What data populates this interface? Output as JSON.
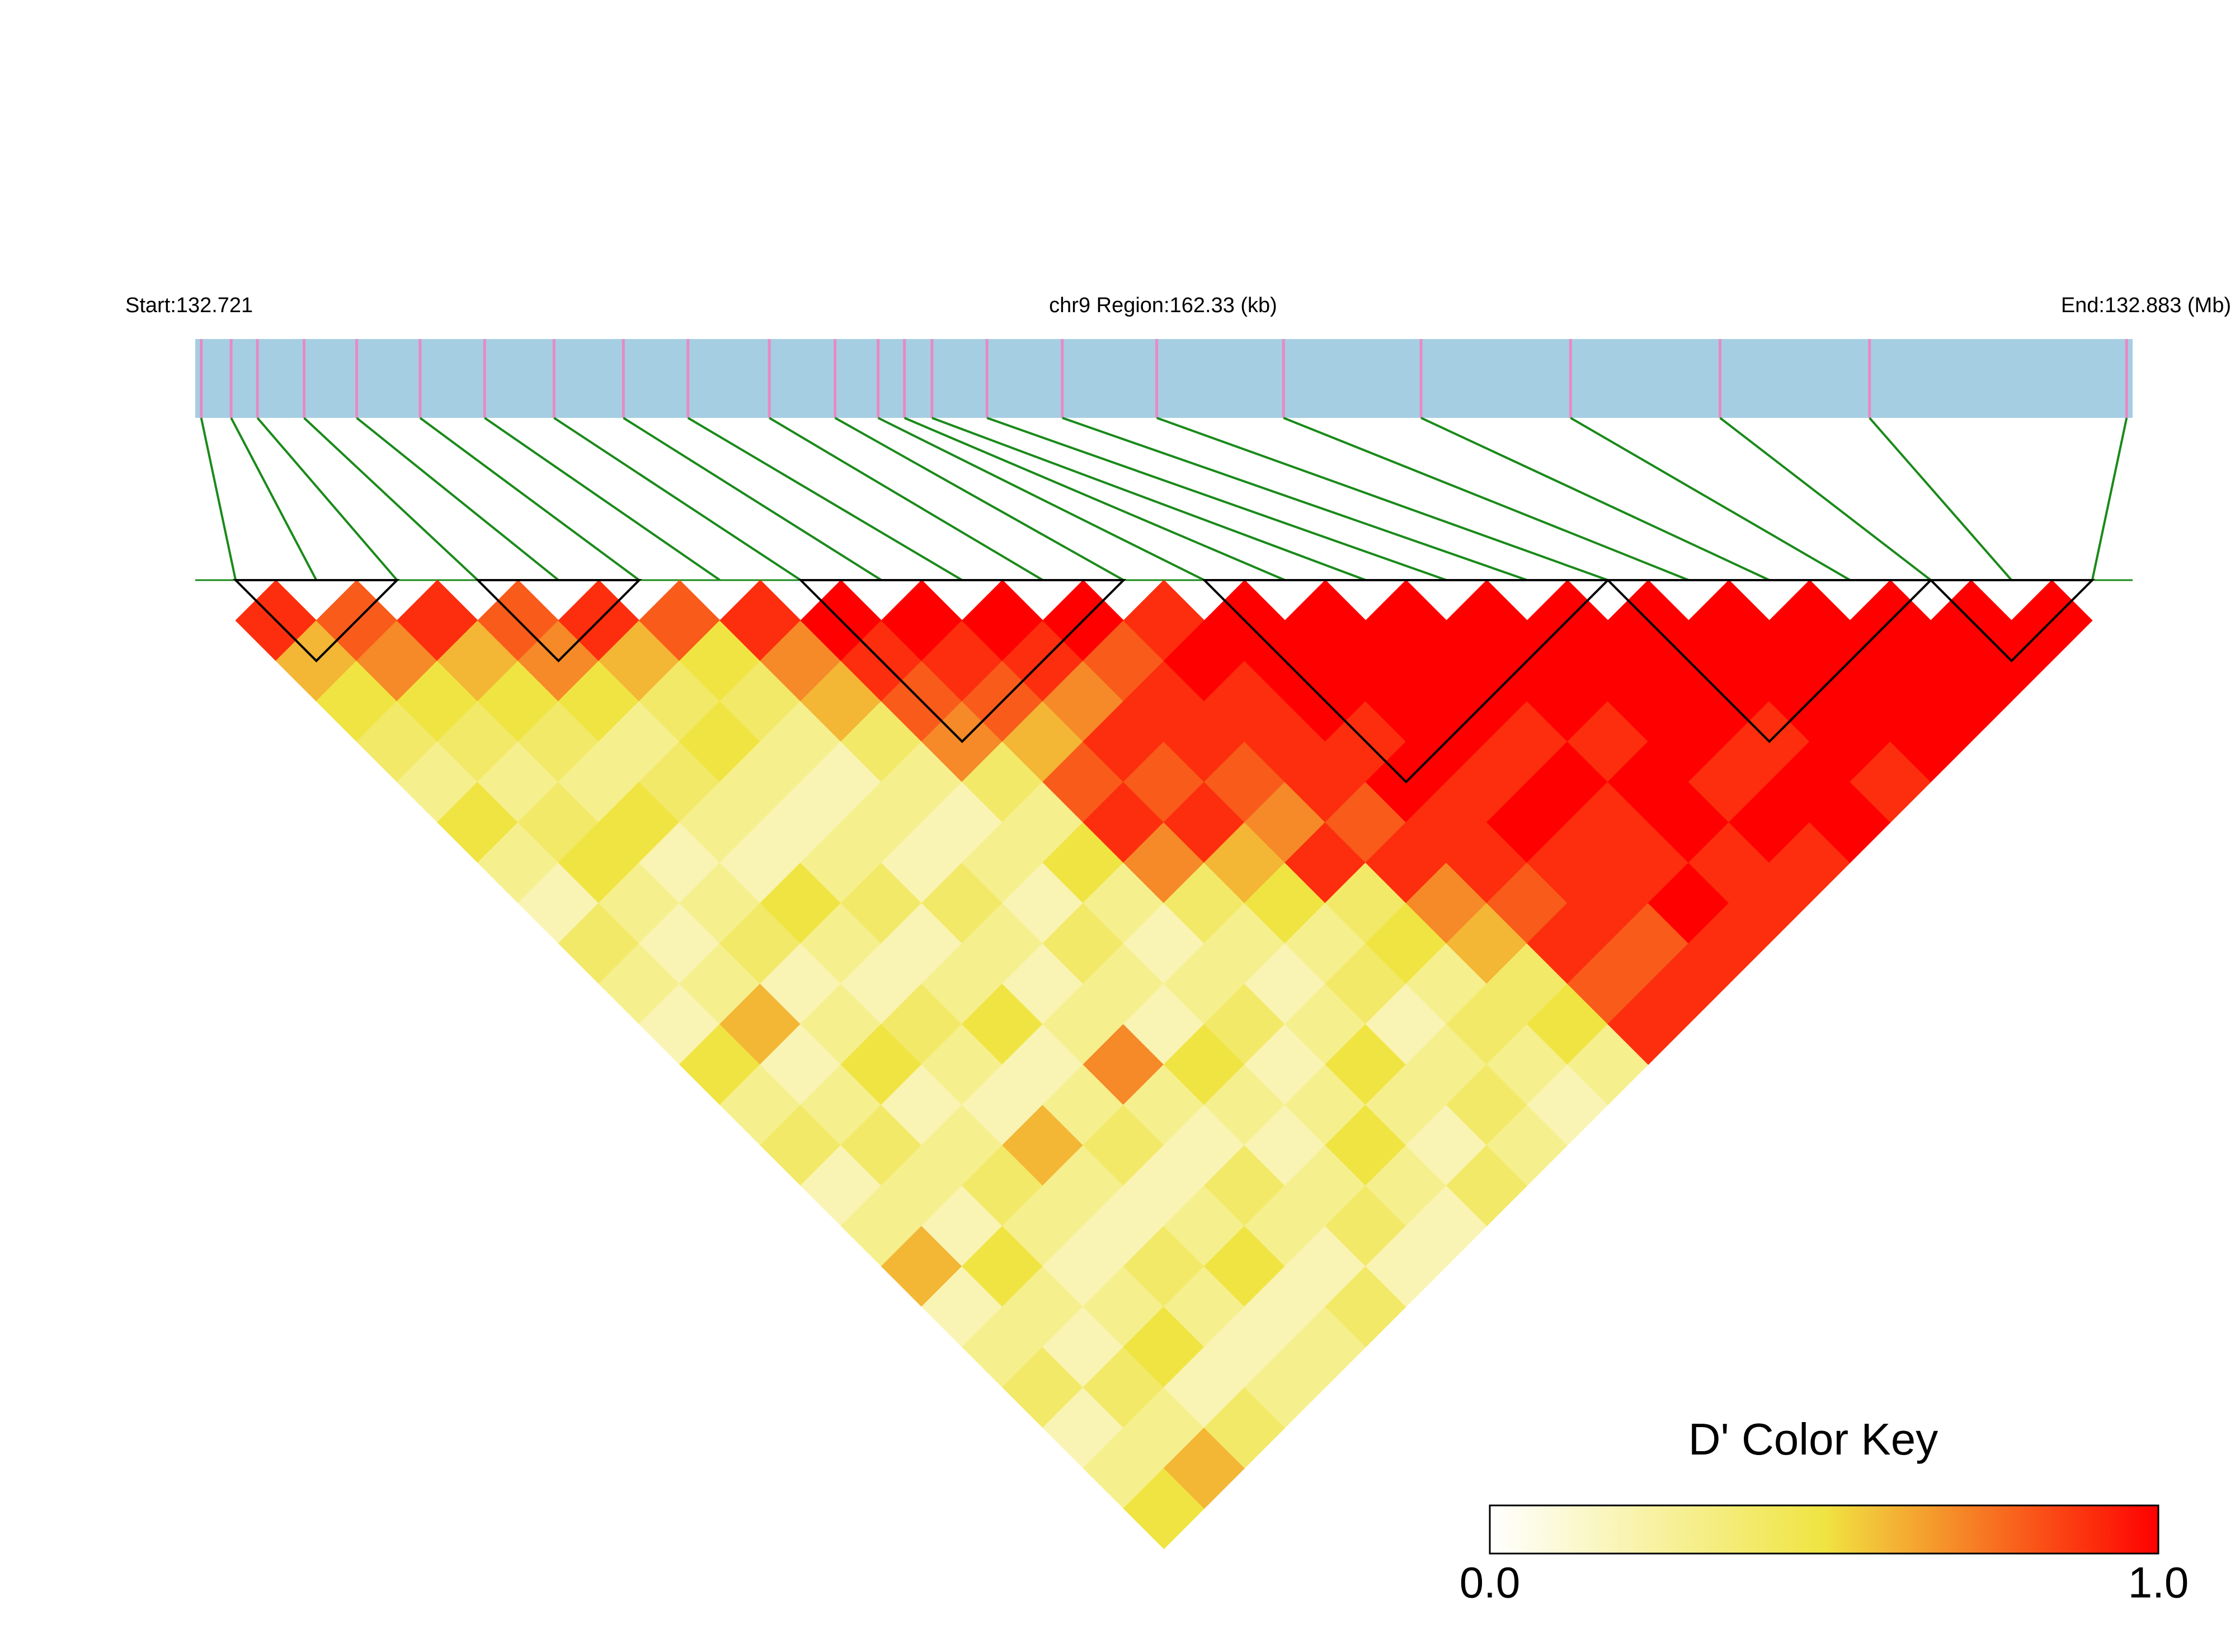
{
  "chart_data": {
    "type": "ld_heatmap",
    "start_label": "Start:132.721",
    "region_label": "chr9 Region:162.33 (kb)",
    "end_label": "End:132.883 (Mb)",
    "xlim": [
      132.721,
      132.883
    ],
    "positions": [
      132.7215,
      132.724,
      132.7262,
      132.7301,
      132.7345,
      132.7398,
      132.7452,
      132.751,
      132.7568,
      132.7622,
      132.769,
      132.7745,
      132.7781,
      132.7803,
      132.7826,
      132.7872,
      132.7935,
      132.8014,
      132.812,
      132.8235,
      132.836,
      132.8485,
      132.861,
      132.8825
    ],
    "ld": [
      [
        0.9,
        0.6,
        0.5,
        0.4,
        0.3,
        0.5,
        0.3,
        0.2,
        0.4,
        0.3,
        0.2,
        0.5,
        0.3,
        0.4,
        0.2,
        0.3,
        0.6,
        0.2,
        0.3,
        0.4,
        0.2,
        0.3,
        0.5
      ],
      [
        0.8,
        0.7,
        0.5,
        0.4,
        0.3,
        0.4,
        0.5,
        0.3,
        0.2,
        0.3,
        0.6,
        0.2,
        0.3,
        0.4,
        0.3,
        0.2,
        0.5,
        0.3,
        0.2,
        0.4,
        0.3,
        0.6
      ],
      [
        0.9,
        0.6,
        0.5,
        0.4,
        0.3,
        0.5,
        0.2,
        0.3,
        0.4,
        0.2,
        0.3,
        0.5,
        0.2,
        0.3,
        0.4,
        0.3,
        0.2,
        0.3,
        0.5,
        0.2,
        0.4
      ],
      [
        0.8,
        0.7,
        0.5,
        0.3,
        0.4,
        0.3,
        0.2,
        0.5,
        0.3,
        0.2,
        0.4,
        0.3,
        0.2,
        0.6,
        0.3,
        0.2,
        0.4,
        0.3,
        0.2,
        0.3
      ],
      [
        0.9,
        0.6,
        0.4,
        0.5,
        0.3,
        0.2,
        0.3,
        0.4,
        0.2,
        0.3,
        0.5,
        0.2,
        0.3,
        0.4,
        0.2,
        0.3,
        0.5,
        0.2,
        0.3
      ],
      [
        0.8,
        0.5,
        0.4,
        0.3,
        0.2,
        0.3,
        0.2,
        0.4,
        0.3,
        0.2,
        0.3,
        0.7,
        0.3,
        0.2,
        0.4,
        0.3,
        0.2,
        0.4
      ],
      [
        0.9,
        0.7,
        0.6,
        0.4,
        0.3,
        0.2,
        0.3,
        0.2,
        0.4,
        0.3,
        0.2,
        0.5,
        0.3,
        0.2,
        0.3,
        0.4,
        0.2
      ],
      [
        1,
        0.9,
        0.8,
        0.7,
        0.4,
        0.3,
        0.5,
        0.3,
        0.2,
        0.3,
        0.4,
        0.2,
        0.3,
        0.5,
        0.3,
        0.2
      ],
      [
        1,
        0.9,
        0.8,
        0.6,
        0.8,
        0.9,
        0.7,
        0.4,
        0.3,
        0.2,
        0.3,
        0.5,
        0.3,
        0.2,
        0.4
      ],
      [
        1,
        0.9,
        0.7,
        0.9,
        0.8,
        0.9,
        0.6,
        0.5,
        0.3,
        0.4,
        0.2,
        0.3,
        0.4,
        0.3
      ],
      [
        1,
        0.8,
        0.9,
        0.9,
        0.8,
        0.7,
        0.9,
        0.4,
        0.5,
        0.3,
        0.4,
        0.3,
        0.2
      ],
      [
        0.9,
        1,
        0.9,
        0.9,
        0.9,
        0.8,
        0.9,
        0.7,
        0.6,
        0.4,
        0.5,
        0.3
      ],
      [
        1,
        1,
        1,
        0.9,
        1,
        0.9,
        0.9,
        0.8,
        0.9,
        0.8,
        0.9
      ],
      [
        1,
        1,
        1,
        1,
        0.9,
        1,
        0.9,
        0.9,
        0.8,
        0.9
      ],
      [
        1,
        1,
        1,
        0.9,
        1,
        0.9,
        0.9,
        1,
        0.9
      ],
      [
        1,
        1,
        1,
        0.9,
        1,
        1,
        0.9,
        0.9
      ],
      [
        1,
        1,
        1,
        1,
        0.9,
        1,
        0.9
      ],
      [
        1,
        1,
        1,
        0.9,
        1,
        1
      ],
      [
        1,
        1,
        1,
        1,
        0.9
      ],
      [
        1,
        1,
        1,
        1
      ],
      [
        1,
        1,
        1
      ],
      [
        1,
        1
      ],
      [
        1
      ]
    ],
    "blocks": [
      [
        0,
        2
      ],
      [
        3,
        5
      ],
      [
        7,
        11
      ],
      [
        12,
        17
      ],
      [
        17,
        21
      ],
      [
        21,
        23
      ]
    ],
    "bar_color": "#a6cee3",
    "snp_color": "#e78ac3",
    "link_color": "#1a8a1a",
    "colors": [
      "#ffffff",
      "#f0e442",
      "#ff0000"
    ],
    "color_key": {
      "title": "D' Color Key",
      "range": [
        0,
        1
      ],
      "ticks": [
        {
          "value": 0,
          "label": "0.0"
        },
        {
          "value": 1,
          "label": "1.0"
        }
      ]
    }
  }
}
